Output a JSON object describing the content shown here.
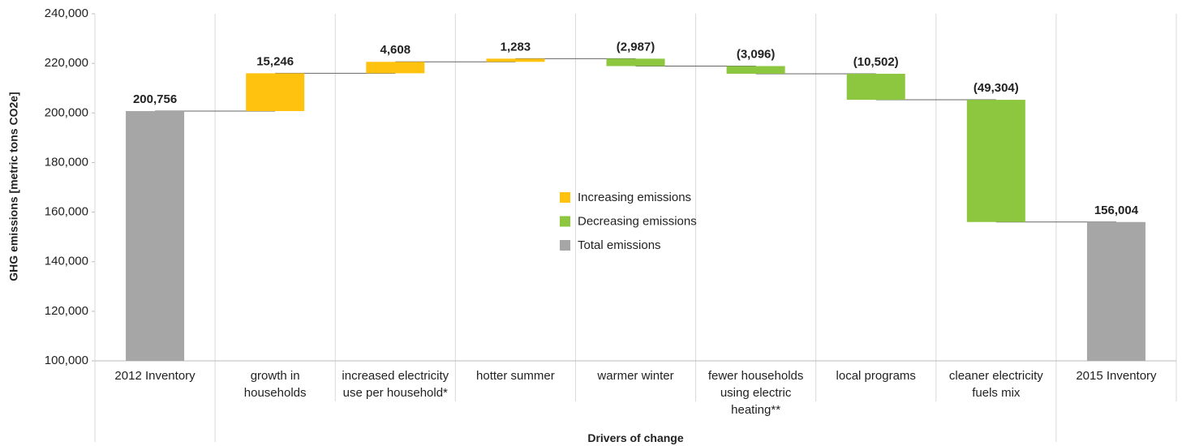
{
  "chart_data": {
    "type": "waterfall",
    "x_label": "Drivers of change",
    "y_label": "GHG emissions [metric tons CO2e]",
    "categories": [
      "2012 Inventory",
      "growth in households",
      "increased electricity use per household*",
      "hotter summer",
      "warmer winter",
      "fewer households using electric heating**",
      "local programs",
      "cleaner electricity fuels mix",
      "2015 Inventory"
    ],
    "values": [
      200756,
      15246,
      4608,
      1283,
      -2987,
      -3096,
      -10502,
      -49304,
      156004
    ],
    "value_labels": [
      "200,756",
      "15,246",
      "4,608",
      "1,283",
      "(2,987)",
      "(3,096)",
      "(10,502)",
      "(49,304)",
      "156,004"
    ],
    "ylim": [
      100000,
      240000
    ],
    "yticks": [
      {
        "value": 100000,
        "label": "100,000"
      },
      {
        "value": 120000,
        "label": "120,000"
      },
      {
        "value": 140000,
        "label": "140,000"
      },
      {
        "value": 160000,
        "label": "160,000"
      },
      {
        "value": 180000,
        "label": "180,000"
      },
      {
        "value": 200000,
        "label": "200,000"
      },
      {
        "value": 220000,
        "label": "220,000"
      },
      {
        "value": 240000,
        "label": "240,000"
      }
    ],
    "legend": {
      "position": "center",
      "items": [
        {
          "name": "Increasing emissions",
          "color": "#ffc20e"
        },
        {
          "name": "Decreasing emissions",
          "color": "#8dc63f"
        },
        {
          "name": "Total emissions",
          "color": "#a6a6a6"
        }
      ]
    }
  }
}
